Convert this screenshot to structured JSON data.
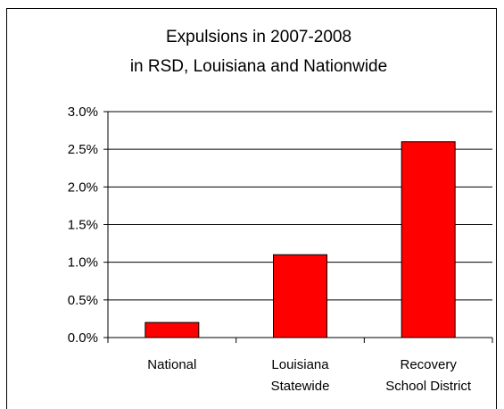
{
  "chart_data": {
    "type": "bar",
    "title": [
      "Expulsions in 2007-2008",
      "in RSD, Louisiana and Nationwide"
    ],
    "categories": [
      [
        "National"
      ],
      [
        "Louisiana",
        "Statewide"
      ],
      [
        "Recovery",
        "School District"
      ]
    ],
    "values": [
      0.2,
      1.1,
      2.6
    ],
    "ylim": [
      0,
      3.0
    ],
    "yticks": [
      0.0,
      0.5,
      1.0,
      1.5,
      2.0,
      2.5,
      3.0
    ],
    "ytick_labels": [
      "0.0%",
      "0.5%",
      "1.0%",
      "1.5%",
      "2.0%",
      "2.5%",
      "3.0%"
    ],
    "grid": true,
    "legend": "none",
    "bar_color": "#FF0000",
    "bar_edge_color": "#000000"
  }
}
